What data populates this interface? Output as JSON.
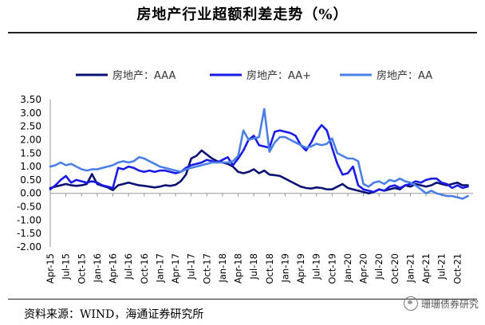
{
  "title": "房地产行业超额利差走势（%）",
  "source": "资料来源：WIND，海通证券研究所",
  "watermark": "珊珊债券研究",
  "chart_data": {
    "type": "line",
    "title": "房地产行业超额利差走势（%）",
    "ylim": [
      -2.0,
      3.5
    ],
    "yticks": [
      "3.50",
      "3.00",
      "2.50",
      "2.00",
      "1.50",
      "1.00",
      "0.50",
      "0.00",
      "-0.50",
      "-1.00",
      "-1.50",
      "-2.00"
    ],
    "ytick_values": [
      3.5,
      3.0,
      2.5,
      2.0,
      1.5,
      1.0,
      0.5,
      0.0,
      -0.5,
      -1.0,
      -1.5,
      -2.0
    ],
    "xlim": [
      "2015-04",
      "2022-01"
    ],
    "xticks": [
      "Apr-15",
      "Jul-15",
      "Oct-15",
      "Jan-16",
      "Apr-16",
      "Jul-16",
      "Oct-16",
      "Jan-17",
      "Apr-17",
      "Jul-17",
      "Oct-17",
      "Jan-18",
      "Apr-18",
      "Jul-18",
      "Oct-18",
      "Jan-19",
      "Apr-19",
      "Jul-19",
      "Oct-19",
      "Jan-20",
      "Apr-20",
      "Jul-20",
      "Oct-20",
      "Jan-21",
      "Apr-21",
      "Jul-21",
      "Oct-21"
    ],
    "grid": false,
    "legend": "top",
    "series": [
      {
        "name": "房地产：AAA",
        "color": "#0a1172",
        "points": [
          [
            "2015-04",
            0.2
          ],
          [
            "2015-05",
            0.25
          ],
          [
            "2015-06",
            0.3
          ],
          [
            "2015-07",
            0.35
          ],
          [
            "2015-08",
            0.3
          ],
          [
            "2015-09",
            0.28
          ],
          [
            "2015-10",
            0.3
          ],
          [
            "2015-11",
            0.35
          ],
          [
            "2015-12",
            0.72
          ],
          [
            "2016-01",
            0.35
          ],
          [
            "2016-02",
            0.28
          ],
          [
            "2016-03",
            0.22
          ],
          [
            "2016-04",
            0.12
          ],
          [
            "2016-05",
            0.3
          ],
          [
            "2016-06",
            0.35
          ],
          [
            "2016-07",
            0.4
          ],
          [
            "2016-08",
            0.35
          ],
          [
            "2016-09",
            0.3
          ],
          [
            "2016-10",
            0.28
          ],
          [
            "2016-11",
            0.25
          ],
          [
            "2016-12",
            0.22
          ],
          [
            "2017-01",
            0.25
          ],
          [
            "2017-02",
            0.3
          ],
          [
            "2017-03",
            0.28
          ],
          [
            "2017-04",
            0.32
          ],
          [
            "2017-05",
            0.45
          ],
          [
            "2017-06",
            0.7
          ],
          [
            "2017-07",
            1.3
          ],
          [
            "2017-08",
            1.4
          ],
          [
            "2017-09",
            1.6
          ],
          [
            "2017-10",
            1.45
          ],
          [
            "2017-11",
            1.3
          ],
          [
            "2017-12",
            1.2
          ],
          [
            "2018-01",
            1.15
          ],
          [
            "2018-02",
            1.1
          ],
          [
            "2018-03",
            1.0
          ],
          [
            "2018-04",
            0.8
          ],
          [
            "2018-05",
            0.75
          ],
          [
            "2018-06",
            0.8
          ],
          [
            "2018-07",
            0.9
          ],
          [
            "2018-08",
            0.75
          ],
          [
            "2018-09",
            0.85
          ],
          [
            "2018-10",
            0.7
          ],
          [
            "2018-11",
            0.68
          ],
          [
            "2018-12",
            0.65
          ],
          [
            "2019-01",
            0.55
          ],
          [
            "2019-02",
            0.45
          ],
          [
            "2019-03",
            0.35
          ],
          [
            "2019-04",
            0.25
          ],
          [
            "2019-05",
            0.2
          ],
          [
            "2019-06",
            0.18
          ],
          [
            "2019-07",
            0.22
          ],
          [
            "2019-08",
            0.2
          ],
          [
            "2019-09",
            0.15
          ],
          [
            "2019-10",
            0.15
          ],
          [
            "2019-11",
            0.25
          ],
          [
            "2019-12",
            0.35
          ],
          [
            "2020-01",
            0.2
          ],
          [
            "2020-02",
            0.15
          ],
          [
            "2020-03",
            0.1
          ],
          [
            "2020-04",
            0.05
          ],
          [
            "2020-05",
            0.0
          ],
          [
            "2020-06",
            0.05
          ],
          [
            "2020-07",
            0.15
          ],
          [
            "2020-08",
            0.1
          ],
          [
            "2020-09",
            0.15
          ],
          [
            "2020-10",
            0.2
          ],
          [
            "2020-11",
            0.15
          ],
          [
            "2020-12",
            0.3
          ],
          [
            "2021-01",
            0.25
          ],
          [
            "2021-02",
            0.35
          ],
          [
            "2021-03",
            0.3
          ],
          [
            "2021-04",
            0.25
          ],
          [
            "2021-05",
            0.3
          ],
          [
            "2021-06",
            0.4
          ],
          [
            "2021-07",
            0.35
          ],
          [
            "2021-08",
            0.3
          ],
          [
            "2021-09",
            0.35
          ],
          [
            "2021-10",
            0.4
          ],
          [
            "2021-11",
            0.3
          ],
          [
            "2021-12",
            0.3
          ]
        ]
      },
      {
        "name": "房地产：AA+",
        "color": "#1a1ae6",
        "points": [
          [
            "2015-04",
            0.15
          ],
          [
            "2015-05",
            0.3
          ],
          [
            "2015-06",
            0.5
          ],
          [
            "2015-07",
            0.65
          ],
          [
            "2015-08",
            0.4
          ],
          [
            "2015-09",
            0.5
          ],
          [
            "2015-10",
            0.45
          ],
          [
            "2015-11",
            0.4
          ],
          [
            "2015-12",
            0.45
          ],
          [
            "2016-01",
            0.4
          ],
          [
            "2016-02",
            0.3
          ],
          [
            "2016-03",
            0.25
          ],
          [
            "2016-04",
            0.2
          ],
          [
            "2016-05",
            0.95
          ],
          [
            "2016-06",
            0.9
          ],
          [
            "2016-07",
            1.0
          ],
          [
            "2016-08",
            0.95
          ],
          [
            "2016-09",
            0.85
          ],
          [
            "2016-10",
            0.8
          ],
          [
            "2016-11",
            0.85
          ],
          [
            "2016-12",
            0.8
          ],
          [
            "2017-01",
            0.85
          ],
          [
            "2017-02",
            0.85
          ],
          [
            "2017-03",
            0.8
          ],
          [
            "2017-04",
            0.75
          ],
          [
            "2017-05",
            0.8
          ],
          [
            "2017-06",
            0.95
          ],
          [
            "2017-07",
            1.05
          ],
          [
            "2017-08",
            1.1
          ],
          [
            "2017-09",
            1.15
          ],
          [
            "2017-10",
            1.25
          ],
          [
            "2017-11",
            1.2
          ],
          [
            "2017-12",
            1.15
          ],
          [
            "2018-01",
            1.25
          ],
          [
            "2018-02",
            1.35
          ],
          [
            "2018-03",
            1.05
          ],
          [
            "2018-04",
            1.3
          ],
          [
            "2018-05",
            1.6
          ],
          [
            "2018-06",
            2.0
          ],
          [
            "2018-07",
            2.15
          ],
          [
            "2018-08",
            1.8
          ],
          [
            "2018-09",
            1.75
          ],
          [
            "2018-10",
            1.7
          ],
          [
            "2018-11",
            2.3
          ],
          [
            "2018-12",
            2.35
          ],
          [
            "2019-01",
            2.3
          ],
          [
            "2019-02",
            2.25
          ],
          [
            "2019-03",
            2.15
          ],
          [
            "2019-04",
            1.8
          ],
          [
            "2019-05",
            1.6
          ],
          [
            "2019-06",
            1.9
          ],
          [
            "2019-07",
            2.3
          ],
          [
            "2019-08",
            2.55
          ],
          [
            "2019-09",
            2.35
          ],
          [
            "2019-10",
            1.7
          ],
          [
            "2019-11",
            1.1
          ],
          [
            "2019-12",
            0.7
          ],
          [
            "2020-01",
            0.75
          ],
          [
            "2020-02",
            1.0
          ],
          [
            "2020-03",
            0.3
          ],
          [
            "2020-04",
            0.15
          ],
          [
            "2020-05",
            0.1
          ],
          [
            "2020-06",
            0.05
          ],
          [
            "2020-07",
            0.15
          ],
          [
            "2020-08",
            0.1
          ],
          [
            "2020-09",
            0.25
          ],
          [
            "2020-10",
            0.3
          ],
          [
            "2020-11",
            0.2
          ],
          [
            "2020-12",
            0.3
          ],
          [
            "2021-01",
            0.35
          ],
          [
            "2021-02",
            0.45
          ],
          [
            "2021-03",
            0.4
          ],
          [
            "2021-04",
            0.5
          ],
          [
            "2021-05",
            0.55
          ],
          [
            "2021-06",
            0.55
          ],
          [
            "2021-07",
            0.4
          ],
          [
            "2021-08",
            0.35
          ],
          [
            "2021-09",
            0.2
          ],
          [
            "2021-10",
            0.3
          ],
          [
            "2021-11",
            0.2
          ],
          [
            "2021-12",
            0.25
          ]
        ]
      },
      {
        "name": "房地产：AA",
        "color": "#4a7fe8",
        "points": [
          [
            "2015-04",
            1.0
          ],
          [
            "2015-05",
            1.05
          ],
          [
            "2015-06",
            1.15
          ],
          [
            "2015-07",
            1.05
          ],
          [
            "2015-08",
            1.1
          ],
          [
            "2015-09",
            1.0
          ],
          [
            "2015-10",
            0.9
          ],
          [
            "2015-11",
            0.85
          ],
          [
            "2015-12",
            0.9
          ],
          [
            "2016-01",
            0.9
          ],
          [
            "2016-02",
            0.95
          ],
          [
            "2016-03",
            1.0
          ],
          [
            "2016-04",
            1.05
          ],
          [
            "2016-05",
            1.15
          ],
          [
            "2016-06",
            1.2
          ],
          [
            "2016-07",
            1.15
          ],
          [
            "2016-08",
            1.2
          ],
          [
            "2016-09",
            1.35
          ],
          [
            "2016-10",
            1.3
          ],
          [
            "2016-11",
            1.2
          ],
          [
            "2016-12",
            1.1
          ],
          [
            "2017-01",
            1.0
          ],
          [
            "2017-02",
            0.95
          ],
          [
            "2017-03",
            0.9
          ],
          [
            "2017-04",
            0.85
          ],
          [
            "2017-05",
            0.8
          ],
          [
            "2017-06",
            0.9
          ],
          [
            "2017-07",
            0.95
          ],
          [
            "2017-08",
            1.0
          ],
          [
            "2017-09",
            1.05
          ],
          [
            "2017-10",
            1.1
          ],
          [
            "2017-11",
            1.15
          ],
          [
            "2017-12",
            1.15
          ],
          [
            "2018-01",
            1.15
          ],
          [
            "2018-02",
            1.15
          ],
          [
            "2018-03",
            1.2
          ],
          [
            "2018-04",
            1.4
          ],
          [
            "2018-05",
            2.35
          ],
          [
            "2018-06",
            2.0
          ],
          [
            "2018-07",
            2.05
          ],
          [
            "2018-08",
            2.1
          ],
          [
            "2018-09",
            3.15
          ],
          [
            "2018-10",
            1.55
          ],
          [
            "2018-11",
            1.9
          ],
          [
            "2018-12",
            2.1
          ],
          [
            "2019-01",
            2.1
          ],
          [
            "2019-02",
            2.0
          ],
          [
            "2019-03",
            1.9
          ],
          [
            "2019-04",
            1.8
          ],
          [
            "2019-05",
            1.7
          ],
          [
            "2019-06",
            1.75
          ],
          [
            "2019-07",
            1.85
          ],
          [
            "2019-08",
            1.8
          ],
          [
            "2019-09",
            1.85
          ],
          [
            "2019-10",
            2.05
          ],
          [
            "2019-11",
            1.5
          ],
          [
            "2019-12",
            1.4
          ],
          [
            "2020-01",
            1.3
          ],
          [
            "2020-02",
            1.3
          ],
          [
            "2020-03",
            1.2
          ],
          [
            "2020-04",
            0.35
          ],
          [
            "2020-05",
            0.25
          ],
          [
            "2020-06",
            0.4
          ],
          [
            "2020-07",
            0.45
          ],
          [
            "2020-08",
            0.35
          ],
          [
            "2020-09",
            0.5
          ],
          [
            "2020-10",
            0.45
          ],
          [
            "2020-11",
            0.55
          ],
          [
            "2020-12",
            0.45
          ],
          [
            "2021-01",
            0.4
          ],
          [
            "2021-02",
            0.3
          ],
          [
            "2021-03",
            0.15
          ],
          [
            "2021-04",
            0.0
          ],
          [
            "2021-05",
            0.1
          ],
          [
            "2021-06",
            0.0
          ],
          [
            "2021-07",
            -0.05
          ],
          [
            "2021-08",
            -0.1
          ],
          [
            "2021-09",
            -0.1
          ],
          [
            "2021-10",
            -0.15
          ],
          [
            "2021-11",
            -0.2
          ],
          [
            "2021-12",
            -0.1
          ]
        ]
      }
    ]
  }
}
